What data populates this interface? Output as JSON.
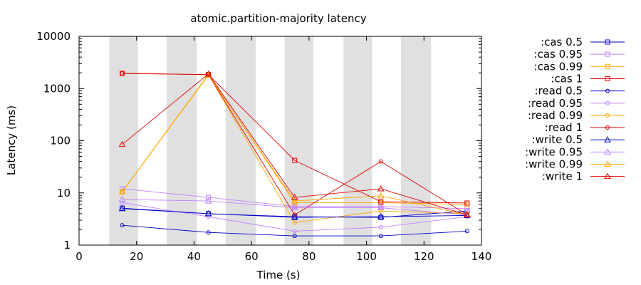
{
  "chart_data": {
    "type": "line",
    "title": "atomic.partition-majority latency",
    "xlabel": "Time (s)",
    "ylabel": "Latency (ms)",
    "xlim": [
      0,
      140
    ],
    "ylim": [
      1,
      10000
    ],
    "yscale": "log",
    "x_ticks": [
      "0",
      "20",
      "40",
      "60",
      "80",
      "100",
      "120",
      "140"
    ],
    "y_ticks": [
      "1",
      "10",
      "100",
      "1000",
      "10000"
    ],
    "grid": false,
    "legend_position": "right",
    "shaded_intervals": [
      [
        10.5,
        20.5
      ],
      [
        30.5,
        41
      ],
      [
        51,
        61.5
      ],
      [
        71.5,
        81.5
      ],
      [
        92,
        102
      ],
      [
        112,
        122.5
      ]
    ],
    "series": [
      {
        "name": ":cas 0.5",
        "color": "#0000cc",
        "marker": "square",
        "x": [
          15,
          45,
          75,
          105,
          135
        ],
        "y": [
          5.1,
          4.0,
          3.5,
          3.4,
          4.5
        ]
      },
      {
        "name": ":cas 0.95",
        "color": "#c080ff",
        "marker": "square",
        "x": [
          15,
          45,
          75,
          105,
          135
        ],
        "y": [
          12,
          8.2,
          5.5,
          5.5,
          5.0
        ]
      },
      {
        "name": ":cas 0.99",
        "color": "#ffa500",
        "marker": "square",
        "x": [
          15,
          45,
          75,
          105,
          135
        ],
        "y": [
          10.5,
          1850,
          6.5,
          6.5,
          6.0
        ]
      },
      {
        "name": ":cas 1",
        "color": "#e00000",
        "marker": "square",
        "x": [
          15,
          45,
          75,
          105,
          135
        ],
        "y": [
          1950,
          1850,
          42,
          6.8,
          6.4
        ]
      },
      {
        "name": ":read 0.5",
        "color": "#0000cc",
        "marker": "circle",
        "x": [
          15,
          45,
          75,
          105,
          135
        ],
        "y": [
          2.4,
          1.75,
          1.5,
          1.5,
          1.85
        ]
      },
      {
        "name": ":read 0.95",
        "color": "#c080ff",
        "marker": "circle",
        "x": [
          15,
          45,
          75,
          105,
          135
        ],
        "y": [
          6.5,
          3.5,
          1.85,
          2.2,
          3.5
        ]
      },
      {
        "name": ":read 0.99",
        "color": "#ffa500",
        "marker": "circle",
        "x": [
          15,
          45,
          75,
          105,
          135
        ],
        "y": [
          10.5,
          1850,
          2.7,
          4.5,
          4.0
        ]
      },
      {
        "name": ":read 1",
        "color": "#e00000",
        "marker": "circle",
        "x": [
          15,
          45,
          75,
          105,
          135
        ],
        "y": [
          1950,
          1850,
          3.8,
          40,
          3.8
        ]
      },
      {
        "name": ":write 0.5",
        "color": "#0000cc",
        "marker": "triangle",
        "x": [
          15,
          45,
          75,
          105,
          135
        ],
        "y": [
          5.0,
          4.0,
          3.4,
          3.5,
          3.7
        ]
      },
      {
        "name": ":write 0.95",
        "color": "#c080ff",
        "marker": "triangle",
        "x": [
          15,
          45,
          75,
          105,
          135
        ],
        "y": [
          7.5,
          7.0,
          5.2,
          5.2,
          3.8
        ]
      },
      {
        "name": ":write 0.99",
        "color": "#ffa500",
        "marker": "triangle",
        "x": [
          15,
          45,
          75,
          105,
          135
        ],
        "y": [
          10.5,
          1800,
          7.0,
          8.8,
          3.8
        ]
      },
      {
        "name": ":write 1",
        "color": "#e00000",
        "marker": "triangle",
        "x": [
          15,
          45,
          75,
          105,
          135
        ],
        "y": [
          85,
          1900,
          8.2,
          12,
          3.8
        ]
      }
    ]
  }
}
